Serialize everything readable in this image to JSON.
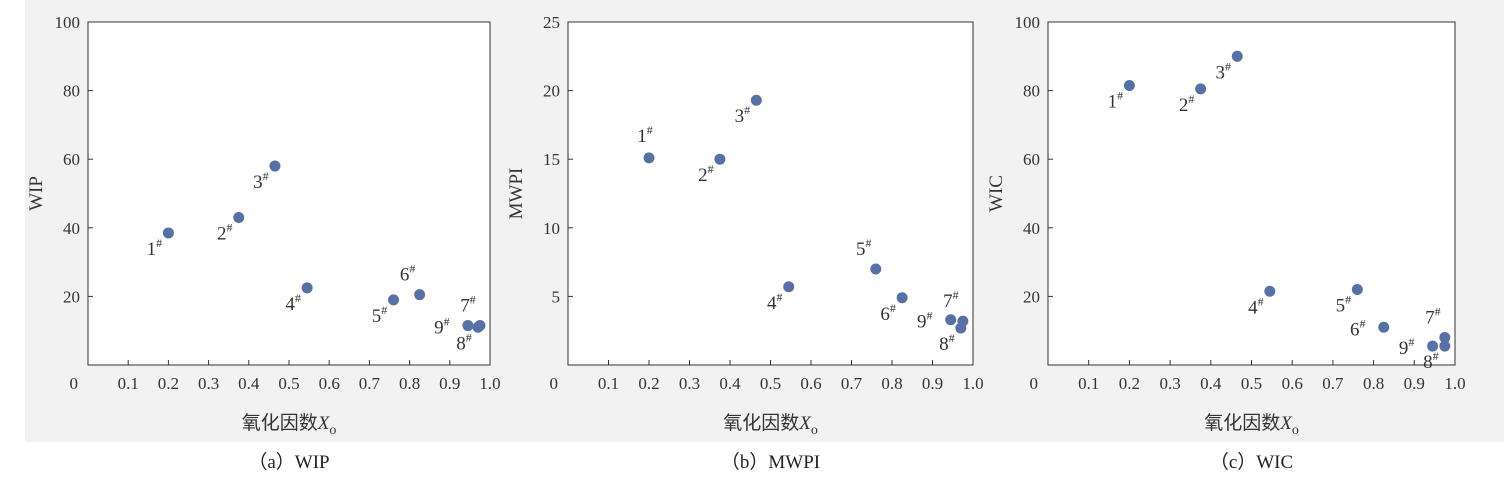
{
  "colors": {
    "background": "#f2f2f2",
    "point": "#5671a6",
    "frame": "#333333",
    "text": "#333333"
  },
  "chart_data": [
    {
      "type": "scatter",
      "caption": "（a）WIP",
      "xlabel": "氧化因数",
      "xlabel_var": "X",
      "xlabel_sub": "o",
      "ylabel": "WIP",
      "xlim": [
        0,
        1.0
      ],
      "ylim": [
        0,
        100
      ],
      "x_ticks": [
        "0.1",
        "0.2",
        "0.3",
        "0.4",
        "0.5",
        "0.6",
        "0.7",
        "0.8",
        "0.9",
        "1.0"
      ],
      "y_ticks": [
        "20",
        "40",
        "60",
        "80",
        "100"
      ],
      "origin_label": "0",
      "points": [
        {
          "label": "1",
          "sup": "#",
          "x": 0.2,
          "y": 38.5,
          "pos": "below-left"
        },
        {
          "label": "2",
          "sup": "#",
          "x": 0.375,
          "y": 43,
          "pos": "below-left"
        },
        {
          "label": "3",
          "sup": "#",
          "x": 0.465,
          "y": 58,
          "pos": "below-left"
        },
        {
          "label": "4",
          "sup": "#",
          "x": 0.545,
          "y": 22.5,
          "pos": "below-left"
        },
        {
          "label": "5",
          "sup": "#",
          "x": 0.76,
          "y": 19,
          "pos": "below-left"
        },
        {
          "label": "6",
          "sup": "#",
          "x": 0.825,
          "y": 20.5,
          "pos": "above-left"
        },
        {
          "label": "7",
          "sup": "#",
          "x": 0.975,
          "y": 11.5,
          "pos": "above-left"
        },
        {
          "label": "8",
          "sup": "#",
          "x": 0.97,
          "y": 11,
          "pos": "below-left"
        },
        {
          "label": "9",
          "sup": "#",
          "x": 0.945,
          "y": 11.5,
          "pos": "left"
        }
      ]
    },
    {
      "type": "scatter",
      "caption": "（b）MWPI",
      "xlabel": "氧化因数",
      "xlabel_var": "X",
      "xlabel_sub": "o",
      "ylabel": "MWPI",
      "xlim": [
        0,
        1.0
      ],
      "ylim": [
        0,
        25
      ],
      "x_ticks": [
        "0.1",
        "0.2",
        "0.3",
        "0.4",
        "0.5",
        "0.6",
        "0.7",
        "0.8",
        "0.9",
        "1.0"
      ],
      "y_ticks": [
        "5",
        "10",
        "15",
        "20",
        "25"
      ],
      "origin_label": "0",
      "points": [
        {
          "label": "1",
          "sup": "#",
          "x": 0.2,
          "y": 15.1,
          "pos": "above"
        },
        {
          "label": "2",
          "sup": "#",
          "x": 0.375,
          "y": 15.0,
          "pos": "below-left"
        },
        {
          "label": "3",
          "sup": "#",
          "x": 0.465,
          "y": 19.3,
          "pos": "below-left"
        },
        {
          "label": "4",
          "sup": "#",
          "x": 0.545,
          "y": 5.7,
          "pos": "below-left"
        },
        {
          "label": "5",
          "sup": "#",
          "x": 0.76,
          "y": 7.0,
          "pos": "above-left"
        },
        {
          "label": "6",
          "sup": "#",
          "x": 0.825,
          "y": 4.9,
          "pos": "below-left"
        },
        {
          "label": "7",
          "sup": "#",
          "x": 0.975,
          "y": 3.2,
          "pos": "above-left"
        },
        {
          "label": "8",
          "sup": "#",
          "x": 0.97,
          "y": 2.7,
          "pos": "below-left"
        },
        {
          "label": "9",
          "sup": "#",
          "x": 0.945,
          "y": 3.3,
          "pos": "left"
        }
      ]
    },
    {
      "type": "scatter",
      "caption": "（c）WIC",
      "xlabel": "氧化因数",
      "xlabel_var": "X",
      "xlabel_sub": "o",
      "ylabel": "WIC",
      "xlim": [
        0,
        1.0
      ],
      "ylim": [
        0,
        100
      ],
      "x_ticks": [
        "0.1",
        "0.2",
        "0.3",
        "0.4",
        "0.5",
        "0.6",
        "0.7",
        "0.8",
        "0.9",
        "1.0"
      ],
      "y_ticks": [
        "20",
        "40",
        "60",
        "80",
        "100"
      ],
      "origin_label": "0",
      "points": [
        {
          "label": "1",
          "sup": "#",
          "x": 0.2,
          "y": 81.5,
          "pos": "below-left"
        },
        {
          "label": "2",
          "sup": "#",
          "x": 0.375,
          "y": 80.5,
          "pos": "below-left"
        },
        {
          "label": "3",
          "sup": "#",
          "x": 0.465,
          "y": 90,
          "pos": "below-left"
        },
        {
          "label": "4",
          "sup": "#",
          "x": 0.545,
          "y": 21.5,
          "pos": "below-left"
        },
        {
          "label": "5",
          "sup": "#",
          "x": 0.76,
          "y": 22,
          "pos": "below-left"
        },
        {
          "label": "6",
          "sup": "#",
          "x": 0.825,
          "y": 11,
          "pos": "left"
        },
        {
          "label": "7",
          "sup": "#",
          "x": 0.975,
          "y": 8,
          "pos": "above-left"
        },
        {
          "label": "8",
          "sup": "#",
          "x": 0.975,
          "y": 5.5,
          "pos": "below-left"
        },
        {
          "label": "9",
          "sup": "#",
          "x": 0.945,
          "y": 5.5,
          "pos": "left"
        }
      ]
    }
  ]
}
